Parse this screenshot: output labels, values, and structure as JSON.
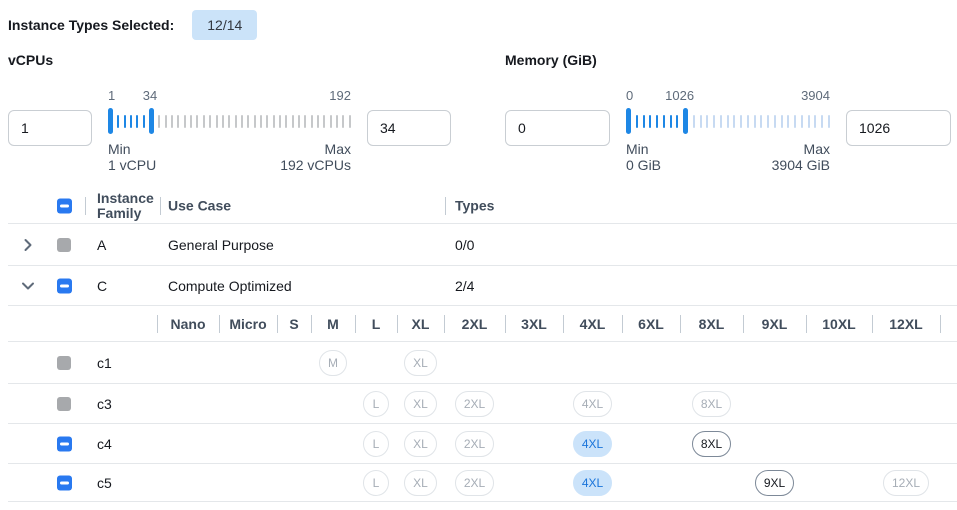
{
  "colors": {
    "accent_blue": "#1e87e5",
    "checkbox_blue": "#2979f0",
    "badge_bg": "#cbe3f9",
    "selected_pill_bg": "#cbe3fa",
    "selected_pill_text": "#1a74da",
    "inactive_tick_vcpus": "#c6c8ca",
    "inactive_tick_memory": "#c7daf2"
  },
  "header": {
    "label": "Instance Types Selected:",
    "badge": "12/14"
  },
  "filters": {
    "vcpus": {
      "title": "vCPUs",
      "low_value": "1",
      "high_value": "34",
      "scale_low_label": "1",
      "scale_high_label": "34",
      "scale_max_label": "192",
      "min": 1,
      "max": 192,
      "high": 34,
      "min_caption": "Min",
      "min_detail": "1 vCPU",
      "max_caption": "Max",
      "max_detail": "192 vCPUs"
    },
    "memory": {
      "title": "Memory (GiB)",
      "low_value": "0",
      "high_value": "1026",
      "scale_low_label": "0",
      "scale_high_label": "1026",
      "scale_max_label": "3904",
      "min": 0,
      "max": 3904,
      "high": 1026,
      "min_caption": "Min",
      "min_detail": "0 GiB",
      "max_caption": "Max",
      "max_detail": "3904 GiB"
    }
  },
  "table": {
    "header": {
      "checkbox": "indeterminate",
      "family": "Instance Family",
      "use_case": "Use Case",
      "types": "Types"
    },
    "size_columns": [
      "Nano",
      "Micro",
      "S",
      "M",
      "L",
      "XL",
      "2XL",
      "3XL",
      "4XL",
      "6XL",
      "8XL",
      "9XL",
      "10XL",
      "12XL"
    ],
    "family_rows": [
      {
        "family": "A",
        "use_case": "General Purpose",
        "types": "0/0",
        "expanded": false,
        "checkbox": "disabled",
        "instance_rows": []
      },
      {
        "family": "C",
        "use_case": "Compute Optimized",
        "types": "2/4",
        "expanded": true,
        "checkbox": "indeterminate",
        "instance_rows": [
          {
            "name": "c1",
            "checkbox": "disabled",
            "pills": [
              {
                "size": "M",
                "state": "unavailable"
              },
              {
                "size": "XL",
                "state": "unavailable"
              }
            ]
          },
          {
            "name": "c3",
            "checkbox": "disabled",
            "pills": [
              {
                "size": "L",
                "state": "unavailable"
              },
              {
                "size": "XL",
                "state": "unavailable"
              },
              {
                "size": "2XL",
                "state": "unavailable"
              },
              {
                "size": "4XL",
                "state": "unavailable"
              },
              {
                "size": "8XL",
                "state": "unavailable"
              }
            ]
          },
          {
            "name": "c4",
            "checkbox": "indeterminate",
            "pills": [
              {
                "size": "L",
                "state": "unavailable"
              },
              {
                "size": "XL",
                "state": "unavailable"
              },
              {
                "size": "2XL",
                "state": "unavailable"
              },
              {
                "size": "4XL",
                "state": "selected"
              },
              {
                "size": "8XL",
                "state": "available"
              }
            ]
          },
          {
            "name": "c5",
            "checkbox": "indeterminate",
            "pills": [
              {
                "size": "L",
                "state": "unavailable"
              },
              {
                "size": "XL",
                "state": "unavailable"
              },
              {
                "size": "2XL",
                "state": "unavailable"
              },
              {
                "size": "4XL",
                "state": "selected"
              },
              {
                "size": "9XL",
                "state": "available"
              },
              {
                "size": "12XL",
                "state": "unavailable"
              }
            ]
          }
        ]
      }
    ]
  }
}
